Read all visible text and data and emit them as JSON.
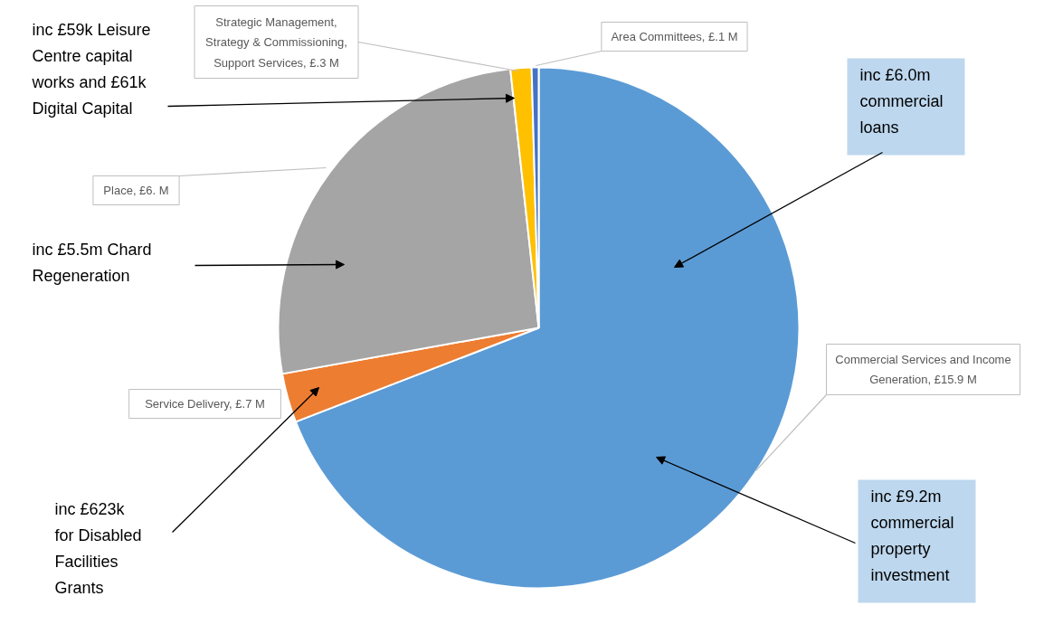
{
  "chart_data": {
    "type": "pie",
    "categories": [
      "Commercial Services and Income Generation",
      "Service Delivery",
      "Place",
      "Strategic Management, Strategy & Commissioning, Support Services",
      "Area Committees"
    ],
    "values": [
      15.9,
      0.7,
      6.0,
      0.3,
      0.1
    ],
    "value_labels": [
      "£15.9 M",
      "£.7 M",
      "£6. M",
      "£.3 M",
      "£.1 M"
    ],
    "colors": [
      "#5b9bd5",
      "#ed7d31",
      "#a5a5a5",
      "#ffc000",
      "#4472c4"
    ],
    "annotations": [
      "inc £59k Leisure Centre capital works and £61k Digital Capital",
      "inc £6.0m commercial loans",
      "inc £5.5m Chard Regeneration",
      "inc £623k for Disabled Facilities Grants",
      "inc £9.2m commercial property investment"
    ]
  }
}
